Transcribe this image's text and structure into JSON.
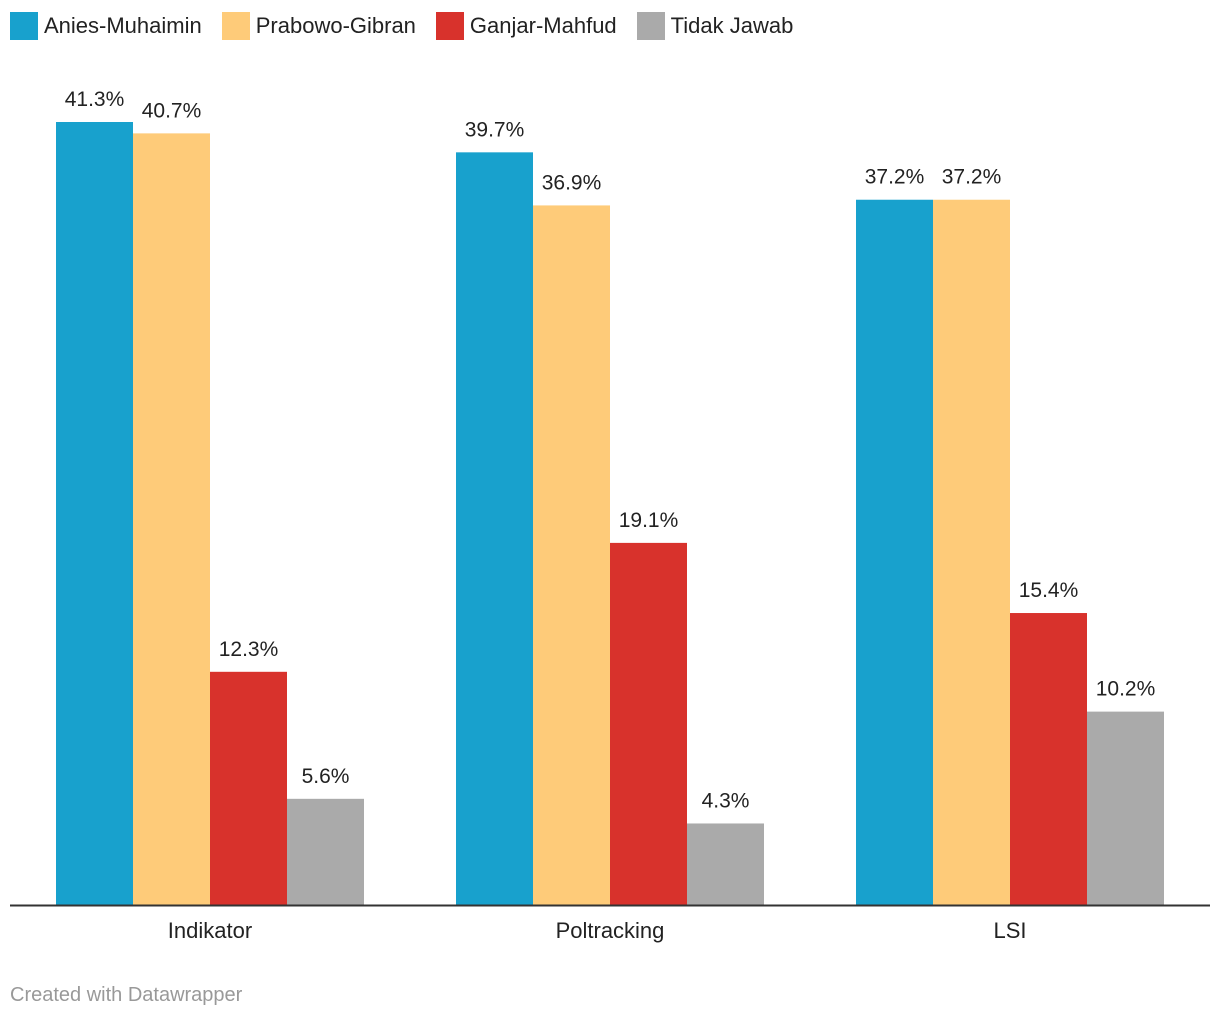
{
  "chart_data": {
    "type": "bar",
    "categories": [
      "Indikator",
      "Poltracking",
      "LSI"
    ],
    "series": [
      {
        "name": "Anies-Muhaimin",
        "color": "#18a1cd",
        "values": [
          41.3,
          39.7,
          37.2
        ],
        "labels": [
          "41.3%",
          "39.7%",
          "37.2%"
        ]
      },
      {
        "name": "Prabowo-Gibran",
        "color": "#fecb79",
        "values": [
          40.7,
          36.9,
          37.2
        ],
        "labels": [
          "40.7%",
          "36.9%",
          "37.2%"
        ]
      },
      {
        "name": "Ganjar-Mahfud",
        "color": "#d8322c",
        "values": [
          12.3,
          19.1,
          15.4
        ],
        "labels": [
          "12.3%",
          "19.1%",
          "15.4%"
        ]
      },
      {
        "name": "Tidak Jawab",
        "color": "#aaaaaa",
        "values": [
          5.6,
          4.3,
          10.2
        ],
        "labels": [
          "5.6%",
          "4.3%",
          "10.2%"
        ]
      }
    ],
    "ylim": [
      0,
      41.3
    ],
    "grid": false,
    "legend": "top-left"
  },
  "credit": "Created with Datawrapper"
}
